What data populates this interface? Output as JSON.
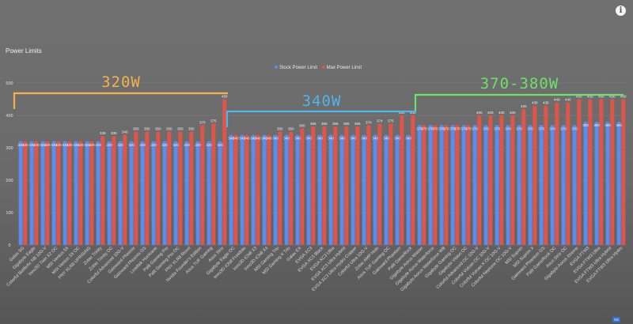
{
  "header": {
    "title": "Power Limits",
    "info_icon": "info-icon"
  },
  "legend": {
    "stock_label": "Stock Power Limit",
    "max_label": "Max Power Limit"
  },
  "colors": {
    "stock": "#5b8def",
    "max": "#e0554a",
    "group_320": "#f5b347",
    "group_340": "#4eb5ee",
    "group_370": "#6fe06a"
  },
  "chart_data": {
    "type": "bar",
    "title": "Power Limits",
    "xlabel": "",
    "ylabel": "",
    "ylim": [
      0,
      500
    ],
    "yticks": [
      0,
      100,
      200,
      300,
      400,
      500
    ],
    "grid": true,
    "legend_position": "top",
    "categories": [
      "Galax SG",
      "Gigabyte Eagle",
      "Colorful BattleAx NB 10G-V",
      "Inno3D Twin X2 OC",
      "MSI Ventus 3X",
      "MSI Ventus 3X OC",
      "PNY XLR8 UPRISING",
      "Zotac Trinity",
      "Zotac Trinity OC",
      "Colorful Advanced 10G-V",
      "Gainward Phoenix",
      "Gainward Phoenix GS",
      "Leadtek Hurricane",
      "Palit Gaming Pro",
      "Palit Gaming Pro OC",
      "PNY XLR8 Revel",
      "Nvidia Founder's Edition",
      "Asus TUF Gaming",
      "Asus Strix",
      "Gigabyte Eagle OC",
      "Inno3D iChill Frostbite",
      "Inno3D iChill X3",
      "Inno3D iChill X4",
      "MSI Gaming Trio",
      "MSI Gaming X Trio",
      "Galax EX",
      "EVGA XC3",
      "EVGA XC3 Black",
      "EVGA XC3 Ultra",
      "EVGA XC3 Ultra Hybrid",
      "EVGA XC3 Ultra Hydro Copper",
      "Colorful Ultra 10G-V",
      "Zotac AMP Holo",
      "Asus TUF Gaming OC",
      "Gainward Phantom",
      "Palit GameRock",
      "Gigabyte Aorus Master",
      "Gigabyte Aorus Waterforce",
      "Gigabyte Aorus Waterforce WB",
      "Gigabyte Gaming OC",
      "Gigabyte Vision OC",
      "Colorful Advanced OC 10G-V",
      "Colorful Vulcan OC 10G-V",
      "Colorful Vulcan X OC 10G-V",
      "Colorful Neptune OC 10G-V",
      "MSI Suprim",
      "MSI Suprim X",
      "Gainward Phantom GS",
      "Palit GameRock OC",
      "Asus Strix OC",
      "Gigabyte Aorus Xtreme",
      "EVGA FTW3",
      "EVGA FTW3 Ultra",
      "EVGA FTW3 Ultra Hybrid",
      "EVGA FTW3 Ultra Hydro"
    ],
    "series": [
      {
        "name": "Stock Power Limit",
        "values": [
          320,
          320,
          320,
          320,
          320,
          320,
          320,
          320,
          320,
          320,
          320,
          320,
          320,
          320,
          320,
          320,
          320,
          320,
          320,
          340,
          340,
          340,
          340,
          340,
          340,
          340,
          340,
          340,
          340,
          340,
          340,
          340,
          340,
          340,
          340,
          340,
          370,
          370,
          370,
          370,
          370,
          370,
          370,
          370,
          370,
          370,
          370,
          370,
          370,
          370,
          370,
          380,
          380,
          380,
          380
        ]
      },
      {
        "name": "Max Power Limit",
        "values": [
          320,
          320,
          320,
          320,
          320,
          320,
          320,
          336,
          336,
          340,
          350,
          350,
          350,
          350,
          350,
          350,
          370,
          375,
          450,
          340,
          340,
          340,
          340,
          350,
          350,
          360,
          366,
          366,
          366,
          366,
          366,
          370,
          374,
          375,
          400,
          400,
          370,
          370,
          370,
          370,
          370,
          400,
          400,
          400,
          400,
          420,
          430,
          430,
          440,
          440,
          450,
          450,
          450,
          450,
          450
        ]
      }
    ],
    "annotations": [
      {
        "label": "320W",
        "from": "Galax SG",
        "to": "Asus Strix",
        "color_key": "group_320"
      },
      {
        "label": "340W",
        "from": "Gigabyte Eagle OC",
        "to": "Palit GameRock",
        "color_key": "group_340"
      },
      {
        "label": "370-380W",
        "from": "Gigabyte Aorus Master",
        "to": "EVGA FTW3 Ultra Hydro",
        "color_key": "group_370"
      }
    ]
  }
}
